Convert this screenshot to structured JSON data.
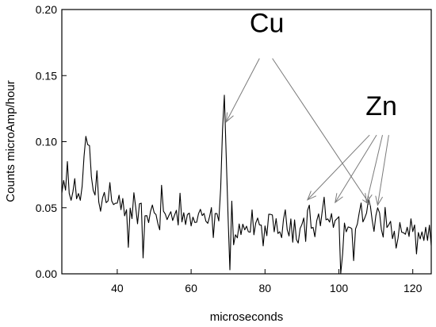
{
  "chart_data": {
    "type": "line",
    "title": "",
    "xlabel": "microseconds",
    "ylabel": "Counts microAmp/hour",
    "xlim": [
      25,
      125
    ],
    "ylim": [
      0,
      0.2
    ],
    "grid": false,
    "x_ticks": [
      40,
      60,
      80,
      100,
      120
    ],
    "x_tick_labels": [
      "40",
      "60",
      "80",
      "100",
      "120"
    ],
    "y_ticks": [
      0,
      0.05,
      0.1,
      0.15,
      0.2
    ],
    "y_tick_labels": [
      "0.00",
      "0.05",
      "0.10",
      "0.15",
      "0.20"
    ],
    "series": [
      {
        "color": "#000000",
        "sample_interval": 0.5,
        "x_start": 25,
        "anchors": [
          [
            25,
            0.06
          ],
          [
            26,
            0.06
          ],
          [
            27,
            0.06
          ],
          [
            28,
            0.058
          ],
          [
            29,
            0.056
          ],
          [
            30,
            0.06
          ],
          [
            31,
            0.08
          ],
          [
            31.8,
            0.1
          ],
          [
            32.5,
            0.085
          ],
          [
            33.5,
            0.065
          ],
          [
            35,
            0.06
          ],
          [
            40,
            0.05
          ],
          [
            45,
            0.047
          ],
          [
            50,
            0.045
          ],
          [
            55,
            0.043
          ],
          [
            60,
            0.04
          ],
          [
            65,
            0.039
          ],
          [
            67.5,
            0.04
          ],
          [
            68.3,
            0.08
          ],
          [
            68.8,
            0.152
          ],
          [
            69.3,
            0.11
          ],
          [
            69.9,
            0.045
          ],
          [
            70.5,
            0.035
          ],
          [
            75,
            0.035
          ],
          [
            80,
            0.034
          ],
          [
            85,
            0.035
          ],
          [
            90,
            0.038
          ],
          [
            92,
            0.04
          ],
          [
            95,
            0.04
          ],
          [
            100,
            0.039
          ],
          [
            105,
            0.04
          ],
          [
            107.5,
            0.046
          ],
          [
            108.5,
            0.052
          ],
          [
            109.5,
            0.04
          ],
          [
            110.5,
            0.05
          ],
          [
            112,
            0.04
          ],
          [
            115,
            0.03
          ],
          [
            120,
            0.03
          ],
          [
            125,
            0.03
          ]
        ],
        "noise": 0.009,
        "spikes": [
          [
            26.5,
            0.085
          ],
          [
            28.5,
            0.072
          ],
          [
            31.5,
            0.104
          ],
          [
            32.5,
            0.097
          ],
          [
            34.5,
            0.078
          ],
          [
            38,
            0.069
          ],
          [
            43,
            0.02
          ],
          [
            47,
            0.012
          ],
          [
            52,
            0.067
          ],
          [
            57,
            0.061
          ],
          [
            70.5,
            0.003
          ],
          [
            71,
            0.055
          ],
          [
            92,
            0.052
          ],
          [
            96,
            0.058
          ],
          [
            100.5,
            0.0
          ],
          [
            101,
            0.015
          ],
          [
            104,
            0.01
          ],
          [
            108.5,
            0.052
          ],
          [
            110.5,
            0.05
          ],
          [
            121,
            0.015
          ]
        ]
      }
    ],
    "annotations": [
      {
        "text": "Cu",
        "anchor": [
          80.5,
          0.183
        ],
        "arrows": [
          {
            "from": [
              78.5,
              0.163
            ],
            "to": [
              69.5,
              0.115
            ]
          },
          {
            "from": [
              82,
              0.163
            ],
            "to": [
              108.5,
              0.052
            ]
          }
        ]
      },
      {
        "text": "Zn",
        "anchor": [
          111.5,
          0.12
        ],
        "arrows": [
          {
            "from": [
              108.3,
              0.105
            ],
            "to": [
              91.5,
              0.056
            ]
          },
          {
            "from": [
              110.2,
              0.105
            ],
            "to": [
              99,
              0.054
            ]
          },
          {
            "from": [
              111.8,
              0.105
            ],
            "to": [
              107.5,
              0.054
            ]
          },
          {
            "from": [
              113.5,
              0.105
            ],
            "to": [
              110.5,
              0.052
            ]
          }
        ]
      }
    ]
  }
}
